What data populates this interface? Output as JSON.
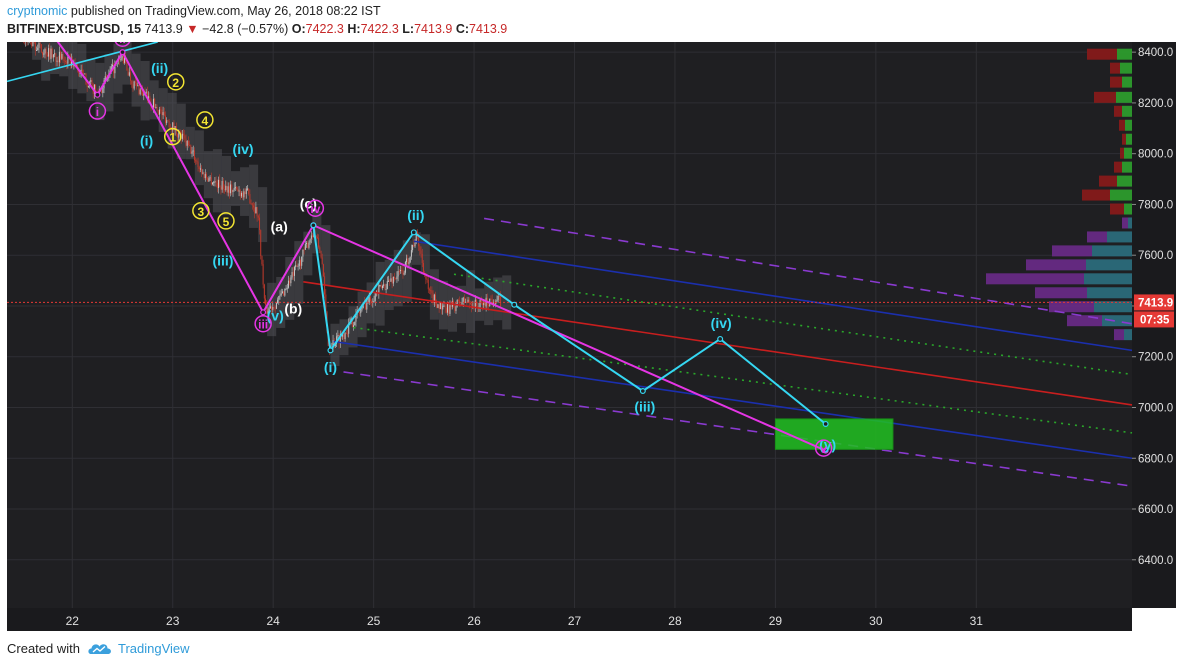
{
  "header": {
    "author": "cryptnomic",
    "published": "published on TradingView.com, May 26, 2018 08:22 IST",
    "symbol": "BITFINEX:BTCUSD, 15",
    "last": "7413.9",
    "arrow": "▼",
    "change": "−42.8 (−0.57%)",
    "o_label": "O:",
    "o_value": "7422.3",
    "h_label": "H:",
    "h_value": "7422.3",
    "l_label": "L:",
    "l_value": "7413.9",
    "c_label": "C:",
    "c_value": "7413.9"
  },
  "footer": {
    "created_with": "Created with",
    "brand": "TradingView",
    "logo_icon": "tradingview-cloud-icon"
  },
  "colors": {
    "background": "#1f1f22",
    "grid": "#2f2f34",
    "candle_up": "#c8c8c8",
    "candle_down": "#c0392b",
    "magenta": "#e535e5",
    "cyan": "#35d7f2",
    "yellow": "#f3e532",
    "white_label": "#ffffff",
    "red_line": "#c81e1e",
    "blue_line": "#1b2fae",
    "dashed_purple": "#8a3ad0",
    "dotted_green": "#2aa62a",
    "target_box": "#21c021",
    "price_tag": "#e53935"
  },
  "chart_data": {
    "type": "candlestick",
    "title": "",
    "xlabel": "",
    "ylabel": "",
    "x_ticks": [
      "22",
      "23",
      "24",
      "25",
      "26",
      "27",
      "28",
      "29",
      "30",
      "31"
    ],
    "y_ticks": [
      "8400.0",
      "8200.0",
      "8000.0",
      "7800.0",
      "7600.0",
      "7400.0",
      "7200.0",
      "7000.0",
      "6800.0",
      "6600.0",
      "6400.0"
    ],
    "xlim": [
      21.35,
      32.55
    ],
    "ylim": [
      6210,
      8440
    ],
    "grid": true,
    "current_price_label": "7413.9",
    "countdown_label": "07:35",
    "current_price": 7413.9,
    "price_path": [
      [
        21.5,
        8450
      ],
      [
        21.8,
        8390
      ],
      [
        22.0,
        8360
      ],
      [
        22.25,
        8235
      ],
      [
        22.4,
        8330
      ],
      [
        22.5,
        8380
      ],
      [
        22.6,
        8280
      ],
      [
        22.8,
        8200
      ],
      [
        22.95,
        8130
      ],
      [
        23.1,
        8060
      ],
      [
        23.2,
        8000
      ],
      [
        23.3,
        7920
      ],
      [
        23.45,
        7880
      ],
      [
        23.6,
        7860
      ],
      [
        23.75,
        7840
      ],
      [
        23.85,
        7760
      ],
      [
        23.92,
        7380
      ],
      [
        24.05,
        7420
      ],
      [
        24.25,
        7560
      ],
      [
        24.4,
        7700
      ],
      [
        24.48,
        7600
      ],
      [
        24.55,
        7240
      ],
      [
        24.7,
        7290
      ],
      [
        24.9,
        7400
      ],
      [
        25.1,
        7480
      ],
      [
        25.3,
        7540
      ],
      [
        25.43,
        7680
      ],
      [
        25.55,
        7450
      ],
      [
        25.7,
        7380
      ],
      [
        25.9,
        7420
      ],
      [
        26.05,
        7400
      ],
      [
        26.2,
        7430
      ],
      [
        26.27,
        7413.9
      ]
    ],
    "volume_profile": [
      {
        "price": 8390,
        "up": 15,
        "down": 30
      },
      {
        "price": 8335,
        "up": 12,
        "down": 10
      },
      {
        "price": 8280,
        "up": 10,
        "down": 12
      },
      {
        "price": 8220,
        "up": 16,
        "down": 22
      },
      {
        "price": 8165,
        "up": 10,
        "down": 8
      },
      {
        "price": 8110,
        "up": 7,
        "down": 6
      },
      {
        "price": 8055,
        "up": 6,
        "down": 4
      },
      {
        "price": 8000,
        "up": 8,
        "down": 4
      },
      {
        "price": 7945,
        "up": 10,
        "down": 8
      },
      {
        "price": 7890,
        "up": 15,
        "down": 18
      },
      {
        "price": 7835,
        "up": 22,
        "down": 28
      },
      {
        "price": 7780,
        "up": 8,
        "down": 14
      },
      {
        "price": 7725,
        "up": 4,
        "down": 6
      },
      {
        "price": 7670,
        "up": 25,
        "down": 20
      },
      {
        "price": 7615,
        "up": 40,
        "down": 40
      },
      {
        "price": 7560,
        "up": 46,
        "down": 60
      },
      {
        "price": 7505,
        "up": 48,
        "down": 98
      },
      {
        "price": 7450,
        "up": 45,
        "down": 52
      },
      {
        "price": 7395,
        "up": 38,
        "down": 45
      },
      {
        "price": 7340,
        "up": 30,
        "down": 35
      },
      {
        "price": 7285,
        "up": 8,
        "down": 10
      }
    ],
    "lines": [
      {
        "id": "red-trendline",
        "style": "solid",
        "color": "red_line",
        "from": [
          24.3,
          7495
        ],
        "to": [
          32.55,
          7010
        ]
      },
      {
        "id": "blue-upper",
        "style": "solid",
        "color": "blue_line",
        "from": [
          25.4,
          7655
        ],
        "to": [
          32.55,
          7225
        ]
      },
      {
        "id": "blue-lower",
        "style": "solid",
        "color": "blue_line",
        "from": [
          24.6,
          7260
        ],
        "to": [
          32.55,
          6800
        ]
      },
      {
        "id": "dashed-upper",
        "style": "dashed",
        "color": "dashed_purple",
        "from": [
          26.1,
          7745
        ],
        "to": [
          32.55,
          7330
        ]
      },
      {
        "id": "dashed-lower",
        "style": "dashed",
        "color": "dashed_purple",
        "from": [
          24.7,
          7140
        ],
        "to": [
          32.55,
          6690
        ]
      },
      {
        "id": "dotted-upper",
        "style": "dotted",
        "color": "dotted_green",
        "from": [
          25.8,
          7525
        ],
        "to": [
          32.55,
          7130
        ]
      },
      {
        "id": "dotted-lower",
        "style": "dotted",
        "color": "dotted_green",
        "from": [
          24.8,
          7315
        ],
        "to": [
          32.55,
          6900
        ]
      },
      {
        "id": "cyan-trendline",
        "style": "solid",
        "color": "cyan",
        "from": [
          21.35,
          8285
        ],
        "to": [
          22.85,
          8440
        ]
      }
    ],
    "waves": [
      {
        "id": "magenta-wave",
        "color": "magenta",
        "points": [
          [
            21.8,
            8470
          ],
          [
            22.25,
            8232
          ],
          [
            22.5,
            8400
          ],
          [
            23.9,
            7375
          ],
          [
            24.4,
            7718
          ],
          [
            29.5,
            6830
          ]
        ]
      },
      {
        "id": "cyan-wave",
        "color": "cyan",
        "points": [
          [
            24.4,
            7718
          ],
          [
            24.57,
            7225
          ],
          [
            25.4,
            7690
          ],
          [
            26.4,
            7405
          ],
          [
            27.68,
            7065
          ],
          [
            28.45,
            7270
          ],
          [
            29.5,
            6935
          ]
        ]
      }
    ],
    "target_zone": {
      "x": [
        29.0,
        30.17
      ],
      "y": [
        6835,
        6955
      ]
    },
    "labels": [
      {
        "text": "i",
        "x": 22.25,
        "y": 8168,
        "color": "magenta",
        "circled": true
      },
      {
        "text": "ii",
        "x": 22.5,
        "y": 8455,
        "color": "magenta",
        "circled": true
      },
      {
        "text": "(ii)",
        "x": 22.87,
        "y": 8338,
        "color": "cyan",
        "circled": false
      },
      {
        "text": "2",
        "x": 23.03,
        "y": 8283,
        "color": "yellow",
        "circled": true
      },
      {
        "text": "4",
        "x": 23.32,
        "y": 8133,
        "color": "yellow",
        "circled": true
      },
      {
        "text": "(i)",
        "x": 22.74,
        "y": 8051,
        "color": "cyan",
        "circled": false
      },
      {
        "text": "1",
        "x": 23.0,
        "y": 8067,
        "color": "yellow",
        "circled": true
      },
      {
        "text": "(iv)",
        "x": 23.7,
        "y": 8018,
        "color": "cyan",
        "circled": false
      },
      {
        "text": "3",
        "x": 23.28,
        "y": 7775,
        "color": "yellow",
        "circled": true
      },
      {
        "text": "5",
        "x": 23.53,
        "y": 7735,
        "color": "yellow",
        "circled": true
      },
      {
        "text": "(a)",
        "x": 24.06,
        "y": 7713,
        "color": "white_label",
        "circled": false
      },
      {
        "text": "(c)",
        "x": 24.35,
        "y": 7803,
        "color": "white_label",
        "circled": false
      },
      {
        "text": "iv",
        "x": 24.42,
        "y": 7785,
        "color": "magenta",
        "circled": true
      },
      {
        "text": "(iii)",
        "x": 23.5,
        "y": 7580,
        "color": "cyan",
        "circled": false
      },
      {
        "text": "(b)",
        "x": 24.2,
        "y": 7390,
        "color": "white_label",
        "circled": false
      },
      {
        "text": "(v)",
        "x": 24.02,
        "y": 7362,
        "color": "cyan",
        "circled": false
      },
      {
        "text": "iii",
        "x": 23.9,
        "y": 7330,
        "color": "magenta",
        "circled": true
      },
      {
        "text": "(ii)",
        "x": 25.42,
        "y": 7758,
        "color": "cyan",
        "circled": false
      },
      {
        "text": "(i)",
        "x": 24.57,
        "y": 7160,
        "color": "cyan",
        "circled": false
      },
      {
        "text": "(iii)",
        "x": 27.7,
        "y": 7003,
        "color": "cyan",
        "circled": false
      },
      {
        "text": "(iv)",
        "x": 28.46,
        "y": 7333,
        "color": "cyan",
        "circled": false
      },
      {
        "text": "(y)",
        "x": 29.52,
        "y": 6855,
        "color": "cyan",
        "circled": false
      },
      {
        "text": "v",
        "x": 29.48,
        "y": 6840,
        "color": "magenta",
        "circled": true
      }
    ]
  }
}
